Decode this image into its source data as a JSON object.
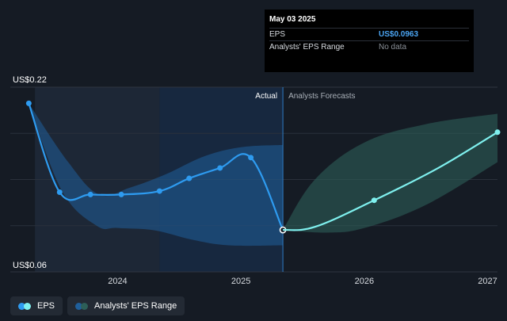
{
  "chart_data": {
    "type": "line",
    "y_labels": {
      "top": "US$0.22",
      "bottom": "US$0.06"
    },
    "ylim": [
      0.06,
      0.22
    ],
    "x_ticks": [
      {
        "label": "2024",
        "x": 2024.0
      },
      {
        "label": "2025",
        "x": 2025.0
      },
      {
        "label": "2026",
        "x": 2026.0
      },
      {
        "label": "2027",
        "x": 2027.0
      }
    ],
    "xlim": [
      2023.13,
      2027.08
    ],
    "regions": {
      "actual_label": "Actual",
      "forecast_label": "Analysts Forecasts"
    },
    "highlight_range": [
      2023.33,
      2024.34
    ],
    "actual_range": [
      2024.34,
      2025.34
    ],
    "series": [
      {
        "name": "EPS",
        "color": "#2e9bf0",
        "points": [
          [
            2023.28,
            0.206
          ],
          [
            2023.53,
            0.129
          ],
          [
            2023.78,
            0.127
          ],
          [
            2024.03,
            0.127
          ],
          [
            2024.34,
            0.13
          ],
          [
            2024.58,
            0.141
          ],
          [
            2024.83,
            0.15
          ],
          [
            2025.08,
            0.159
          ],
          [
            2025.34,
            0.0963
          ]
        ]
      },
      {
        "name": "EPS Forecast",
        "color": "#7ff0ee",
        "points": [
          [
            2025.34,
            0.0963
          ],
          [
            2025.6,
            0.099
          ],
          [
            2026.08,
            0.122
          ],
          [
            2026.6,
            0.15
          ],
          [
            2027.08,
            0.181
          ]
        ]
      }
    ],
    "ranges": [
      {
        "name": "Actual EPS Range",
        "upper": [
          [
            2023.28,
            0.206
          ],
          [
            2023.6,
            0.155
          ],
          [
            2023.85,
            0.127
          ],
          [
            2024.1,
            0.133
          ],
          [
            2024.4,
            0.145
          ],
          [
            2024.7,
            0.16
          ],
          [
            2025.0,
            0.168
          ],
          [
            2025.34,
            0.17
          ]
        ],
        "lower": [
          [
            2023.28,
            0.206
          ],
          [
            2023.55,
            0.13
          ],
          [
            2023.83,
            0.1
          ],
          [
            2024.0,
            0.098
          ],
          [
            2024.3,
            0.096
          ],
          [
            2024.6,
            0.088
          ],
          [
            2024.9,
            0.083
          ],
          [
            2025.34,
            0.083
          ]
        ]
      },
      {
        "name": "Analysts' EPS Range",
        "upper": [
          [
            2025.34,
            0.0963
          ],
          [
            2025.6,
            0.14
          ],
          [
            2026.0,
            0.172
          ],
          [
            2026.5,
            0.188
          ],
          [
            2027.08,
            0.197
          ]
        ],
        "lower": [
          [
            2025.34,
            0.0963
          ],
          [
            2025.7,
            0.094
          ],
          [
            2026.0,
            0.098
          ],
          [
            2026.5,
            0.118
          ],
          [
            2027.08,
            0.155
          ]
        ]
      }
    ],
    "grid": true,
    "colors": {
      "highlight_band": "#1d2736",
      "actual_band": "#17283f",
      "actual_range_fill": "#1f5f9b",
      "forecast_range_fill": "#2d5f58",
      "divider": "#2f7bc4"
    }
  },
  "tooltip": {
    "date": "May 03 2025",
    "rows": [
      {
        "key": "EPS",
        "value": "US$0.0963"
      },
      {
        "key": "Analysts' EPS Range",
        "value": "No data"
      }
    ]
  },
  "legend": [
    {
      "label": "EPS",
      "icon": "eps-dot-icon",
      "colors": [
        "#2e9bf0",
        "#7ff0ee"
      ]
    },
    {
      "label": "Analysts' EPS Range",
      "icon": "range-dot-icon",
      "colors": [
        "#1f5f9b",
        "#2d5f58"
      ]
    }
  ]
}
